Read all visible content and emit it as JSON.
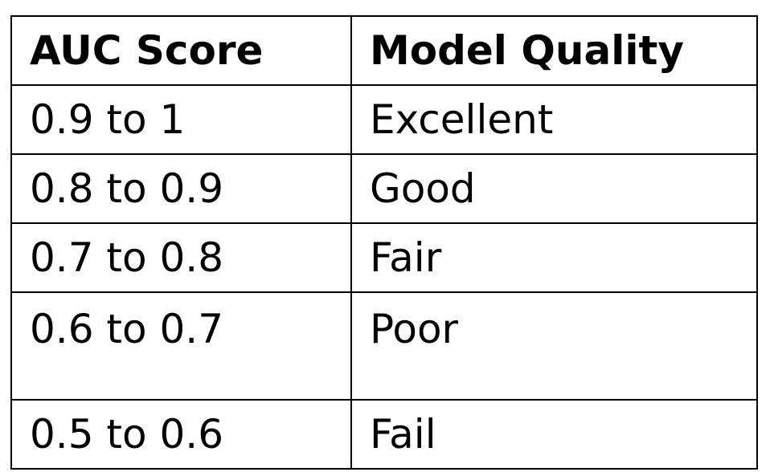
{
  "table": {
    "headers": {
      "score": "AUC Score",
      "quality": "Model Quality"
    },
    "rows": [
      {
        "score": "0.9 to 1",
        "quality": "Excellent"
      },
      {
        "score": "0.8 to 0.9",
        "quality": "Good"
      },
      {
        "score": "0.7 to 0.8",
        "quality": "Fair"
      },
      {
        "score": "0.6 to 0.7",
        "quality": "Poor"
      },
      {
        "score": "0.5 to 0.6",
        "quality": "Fail"
      }
    ]
  }
}
